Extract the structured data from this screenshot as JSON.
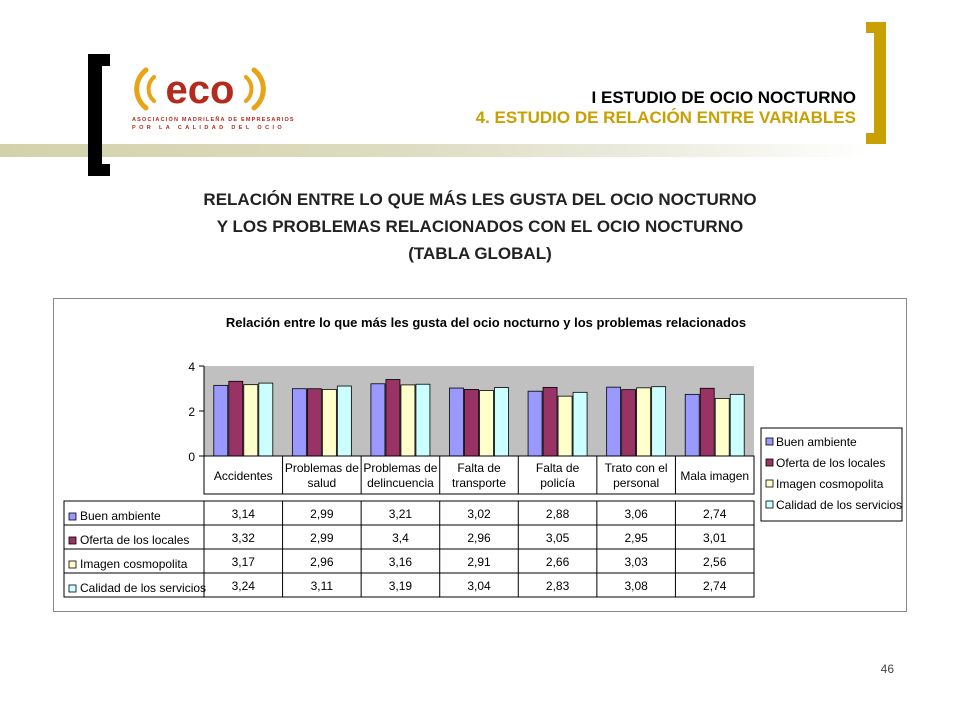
{
  "header": {
    "title_line1": "I ESTUDIO DE OCIO NOCTURNO",
    "title_line2": "4. ESTUDIO DE RELACIÓN ENTRE VARIABLES"
  },
  "logo": {
    "text": "eco",
    "subtitle_line1": "ASOCIACIÓN MADRILEÑA DE EMPRESARIOS",
    "subtitle_line2": "POR LA CALIDAD DEL OCIO"
  },
  "main_title": {
    "line1": "RELACIÓN ENTRE LO QUE MÁS LES GUSTA DEL OCIO NOCTURNO",
    "line2": "Y LOS PROBLEMAS RELACIONADOS CON EL OCIO NOCTURNO",
    "line3": "(TABLA GLOBAL)"
  },
  "page_number": "46",
  "colors": {
    "accent_gold": "#c8a000",
    "plot_bg": "#c0c0c0",
    "series": [
      "#9999ff",
      "#993366",
      "#ffffcc",
      "#ccffff"
    ]
  },
  "chart_data": {
    "type": "bar",
    "title": "Relación entre lo que más les gusta del ocio nocturno y los problemas relacionados",
    "categories": [
      [
        "Accidentes"
      ],
      [
        "Problemas de",
        "salud"
      ],
      [
        "Problemas de",
        "delincuencia"
      ],
      [
        "Falta de",
        "transporte"
      ],
      [
        "Falta de",
        "policía"
      ],
      [
        "Trato con el",
        "personal"
      ],
      [
        "Mala imagen"
      ]
    ],
    "series": [
      {
        "name": "Buen ambiente",
        "values": [
          3.14,
          2.99,
          3.21,
          3.02,
          2.88,
          3.06,
          2.74
        ],
        "labels": [
          "3,14",
          "2,99",
          "3,21",
          "3,02",
          "2,88",
          "3,06",
          "2,74"
        ]
      },
      {
        "name": "Oferta de los locales",
        "values": [
          3.32,
          2.99,
          3.4,
          2.96,
          3.05,
          2.95,
          3.01
        ],
        "labels": [
          "3,32",
          "2,99",
          "3,4",
          "2,96",
          "3,05",
          "2,95",
          "3,01"
        ]
      },
      {
        "name": "Imagen cosmopolita",
        "values": [
          3.17,
          2.96,
          3.16,
          2.91,
          2.66,
          3.03,
          2.56
        ],
        "labels": [
          "3,17",
          "2,96",
          "3,16",
          "2,91",
          "2,66",
          "3,03",
          "2,56"
        ]
      },
      {
        "name": "Calidad de los servicios",
        "values": [
          3.24,
          3.11,
          3.19,
          3.04,
          2.83,
          3.08,
          2.74
        ],
        "labels": [
          "3,24",
          "3,11",
          "3,19",
          "3,04",
          "2,83",
          "3,08",
          "2,74"
        ]
      }
    ],
    "yticks": [
      "0",
      "2",
      "4"
    ],
    "ylim": [
      0,
      4
    ],
    "grid": false,
    "legend": "right",
    "data_table": true
  }
}
